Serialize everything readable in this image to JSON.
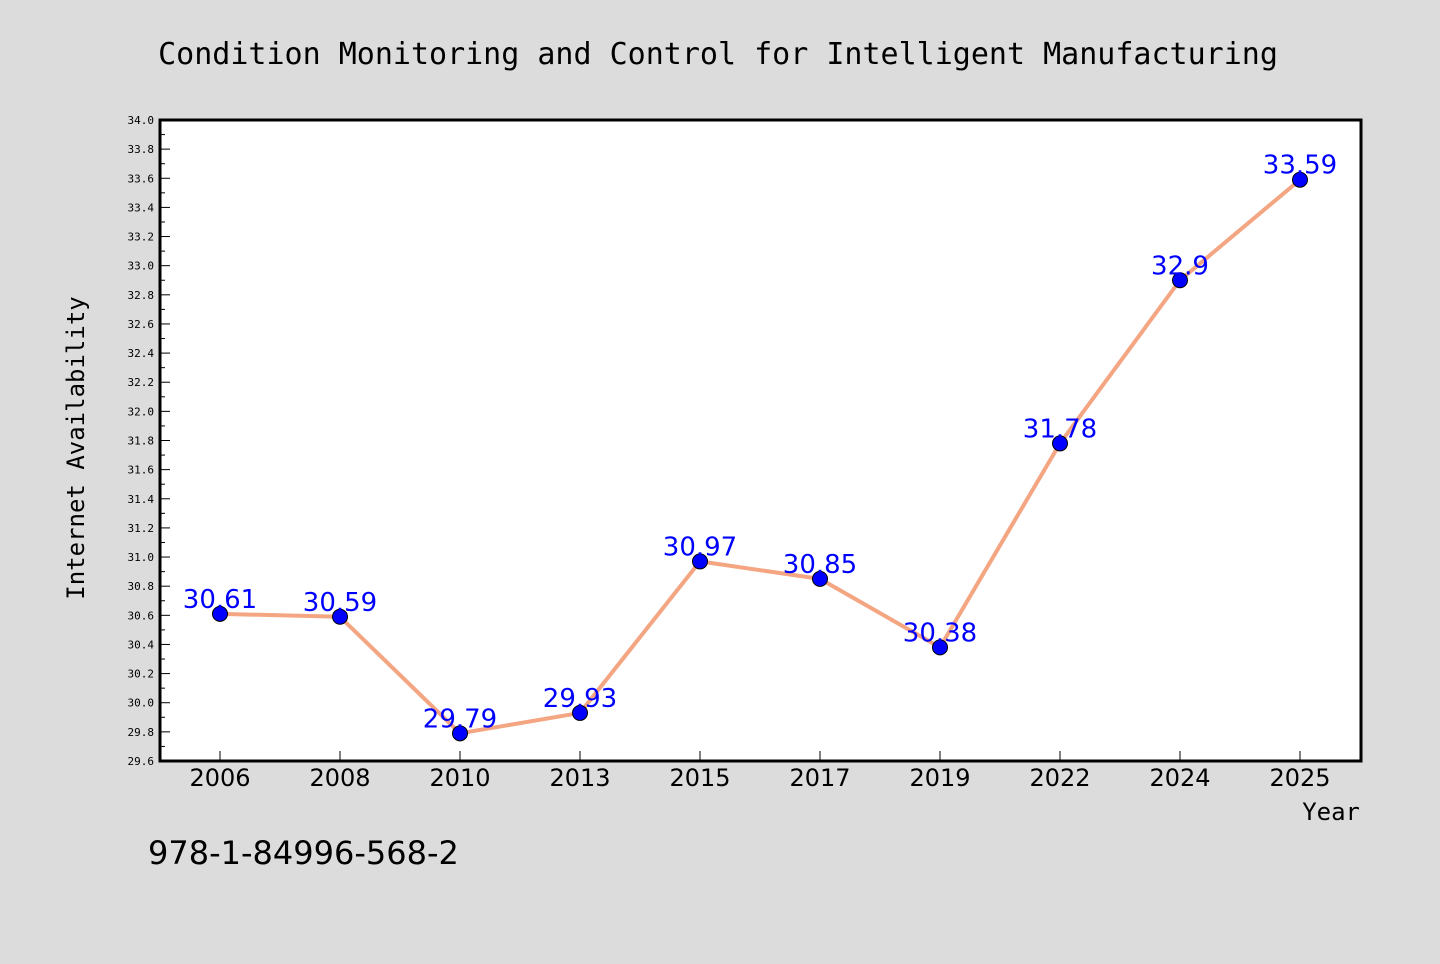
{
  "chart_data": {
    "type": "line",
    "title": "Condition Monitoring and Control for Intelligent Manufacturing",
    "xlabel": "Year",
    "ylabel": "Internet Availability",
    "categories": [
      "2006",
      "2008",
      "2010",
      "2013",
      "2015",
      "2017",
      "2019",
      "2022",
      "2024",
      "2025"
    ],
    "series": [
      {
        "values": [
          30.61,
          30.59,
          29.79,
          29.93,
          30.97,
          30.85,
          30.38,
          31.78,
          32.9,
          33.59
        ],
        "labels": [
          "30.61",
          "30.59",
          "29.79",
          "29.93",
          "30.97",
          "30.85",
          "30.38",
          "31.78",
          "32.9",
          "33.59"
        ]
      }
    ],
    "ylim": [
      29.6,
      34.0
    ],
    "ytick_step": 0.2,
    "grid": false,
    "colors": {
      "line": "#f4a582",
      "marker": "#0000ff",
      "label": "#0000ff",
      "background": "#dcdcdc",
      "plot_background": "#ffffff"
    }
  },
  "footer": {
    "isbn": "978-1-84996-568-2"
  }
}
